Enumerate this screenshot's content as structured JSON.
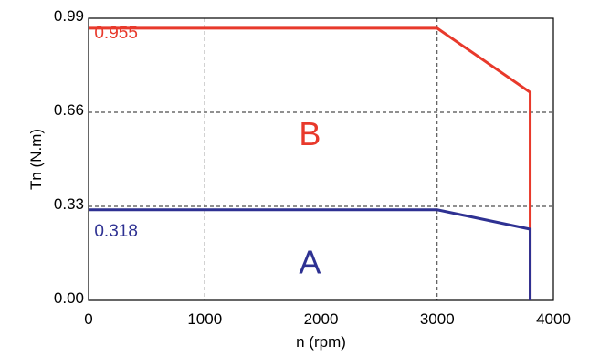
{
  "chart_data": {
    "type": "line",
    "title": "",
    "xlabel": "n (rpm)",
    "ylabel": "Tn (N.m)",
    "xlim": [
      0,
      4000
    ],
    "ylim": [
      0,
      0.99
    ],
    "x_ticks": [
      "0",
      "1000",
      "2000",
      "3000",
      "4000"
    ],
    "y_ticks": [
      "0.00",
      "0.33",
      "0.66",
      "0.99"
    ],
    "grid": true,
    "series": [
      {
        "name": "B",
        "color": "#e8392b",
        "x": [
          0,
          3000,
          3800,
          3800
        ],
        "y": [
          0.955,
          0.955,
          0.73,
          0
        ]
      },
      {
        "name": "A",
        "color": "#2e3192",
        "x": [
          0,
          3000,
          3800,
          3800
        ],
        "y": [
          0.318,
          0.318,
          0.25,
          0
        ]
      }
    ],
    "annotations": [
      {
        "text": "0.955",
        "x": 50,
        "y": 0.92,
        "color": "#e8392b",
        "size": "small"
      },
      {
        "text": "B",
        "x": 1810,
        "y": 0.545,
        "color": "#e8392b",
        "size": "big"
      },
      {
        "text": "0.318",
        "x": 50,
        "y": 0.225,
        "color": "#2e3192",
        "size": "small"
      },
      {
        "text": "A",
        "x": 1810,
        "y": 0.095,
        "color": "#2e3192",
        "size": "big"
      }
    ]
  }
}
